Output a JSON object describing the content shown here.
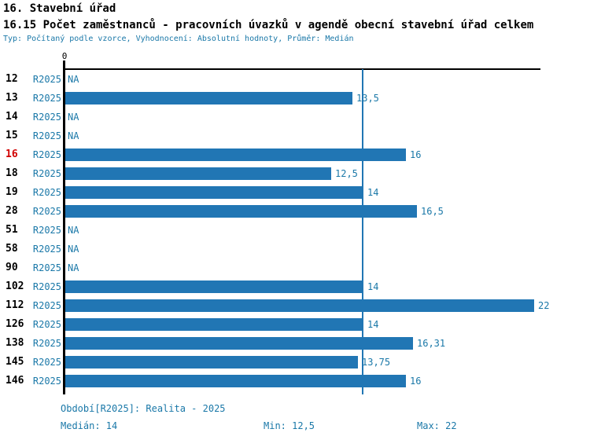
{
  "header": {
    "title1": "16. Stavební úřad",
    "title2": "16.15 Počet zaměstnanců - pracovních úvazků v agendě obecní stavební úřad celkem",
    "subtitle": "Typ: Počítaný podle vzorce, Vyhodnocení: Absolutní hodnoty, Průměr: Medián"
  },
  "chart_data": {
    "type": "bar",
    "orientation": "horizontal",
    "title": "16.15 Počet zaměstnanců - pracovních úvazků v agendě obecní stavební úřad celkem",
    "categories": [
      "12",
      "13",
      "14",
      "15",
      "16",
      "18",
      "19",
      "28",
      "51",
      "58",
      "90",
      "102",
      "112",
      "126",
      "138",
      "145",
      "146"
    ],
    "period_label": "R2025",
    "values": [
      null,
      13.5,
      null,
      null,
      16,
      12.5,
      14,
      16.5,
      null,
      null,
      null,
      14,
      22,
      14,
      16.31,
      13.75,
      16
    ],
    "value_labels": [
      "NA",
      "13,5",
      "NA",
      "NA",
      "16",
      "12,5",
      "14",
      "16,5",
      "NA",
      "NA",
      "NA",
      "14",
      "22",
      "14",
      "16,31",
      "13,75",
      "16"
    ],
    "na_text": "NA",
    "highlighted_category": "16",
    "axis_zero_label": "0",
    "median_line_value": 14,
    "xlim": [
      0,
      22.35
    ],
    "grid": false,
    "legend": "none",
    "bar_color": "#2176b4",
    "median_line_color": "#2176b4",
    "highlight_color": "#d10000",
    "label_color": "#1a78a8",
    "median": 14,
    "min": 12.5,
    "max": 22
  },
  "footer": {
    "period": "Období[R2025]: Realita - 2025",
    "median": "Medián: 14",
    "min": "Min: 12,5",
    "max": "Max: 22"
  }
}
